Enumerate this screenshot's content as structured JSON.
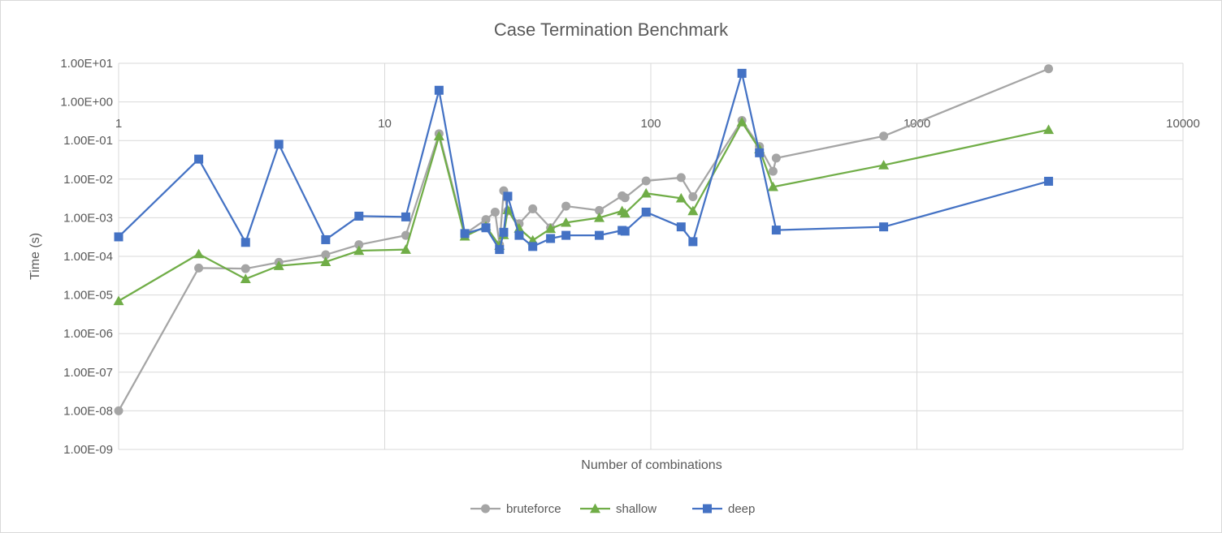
{
  "chart_data": {
    "type": "line",
    "title": "Case Termination Benchmark",
    "xlabel": "Number of combinations",
    "ylabel": "Time (s)",
    "x_scale": "log",
    "y_scale": "log",
    "xlim": [
      1,
      10000
    ],
    "ylim": [
      1e-09,
      10
    ],
    "x_ticks": [
      1,
      10,
      100,
      1000,
      10000
    ],
    "x_tick_labels": [
      "1",
      "10",
      "100",
      "1000",
      "10000"
    ],
    "y_ticks": [
      1e-09,
      1e-08,
      1e-07,
      1e-06,
      1e-05,
      0.0001,
      0.001,
      0.01,
      0.1,
      1,
      10
    ],
    "y_tick_labels": [
      "1.00E-09",
      "1.00E-08",
      "1.00E-07",
      "1.00E-06",
      "1.00E-05",
      "1.00E-04",
      "1.00E-03",
      "1.00E-02",
      "1.00E-01",
      "1.00E+00",
      "1.00E+01"
    ],
    "grid": true,
    "legend_position": "bottom",
    "series": [
      {
        "name": "bruteforce",
        "color": "#a5a5a5",
        "marker": "circle",
        "points": [
          [
            1,
            1e-08
          ],
          [
            2,
            5e-05
          ],
          [
            3,
            4.8e-05
          ],
          [
            4,
            7e-05
          ],
          [
            6,
            0.00011
          ],
          [
            8,
            0.0002
          ],
          [
            12,
            0.00035
          ],
          [
            16,
            0.15
          ],
          [
            20,
            0.00038
          ],
          [
            24,
            0.0009
          ],
          [
            26,
            0.0014
          ],
          [
            27,
            0.0002
          ],
          [
            28,
            0.005
          ],
          [
            29,
            0.0015
          ],
          [
            32,
            0.0007
          ],
          [
            36,
            0.0017
          ],
          [
            42,
            0.00055
          ],
          [
            48,
            0.002
          ],
          [
            64,
            0.00155
          ],
          [
            78,
            0.0037
          ],
          [
            80,
            0.0033
          ],
          [
            96,
            0.009
          ],
          [
            130,
            0.011
          ],
          [
            144,
            0.0035
          ],
          [
            220,
            0.33
          ],
          [
            256,
            0.07
          ],
          [
            288,
            0.016
          ],
          [
            296,
            0.035
          ],
          [
            750,
            0.13
          ],
          [
            3125,
            7.2
          ]
        ]
      },
      {
        "name": "shallow",
        "color": "#70ad47",
        "marker": "triangle",
        "points": [
          [
            1,
            7e-06
          ],
          [
            2,
            0.000115
          ],
          [
            3,
            2.6e-05
          ],
          [
            4,
            5.7e-05
          ],
          [
            6,
            7.2e-05
          ],
          [
            8,
            0.00014
          ],
          [
            12,
            0.00015
          ],
          [
            16,
            0.13
          ],
          [
            20,
            0.00033
          ],
          [
            24,
            0.0006
          ],
          [
            27,
            0.00019
          ],
          [
            28,
            0.00036
          ],
          [
            29,
            0.0016
          ],
          [
            32,
            0.00053
          ],
          [
            36,
            0.00026
          ],
          [
            42,
            0.00052
          ],
          [
            48,
            0.00075
          ],
          [
            64,
            0.001
          ],
          [
            78,
            0.0015
          ],
          [
            80,
            0.0013
          ],
          [
            96,
            0.0043
          ],
          [
            130,
            0.0032
          ],
          [
            144,
            0.0015
          ],
          [
            220,
            0.3
          ],
          [
            256,
            0.06
          ],
          [
            288,
            0.0063
          ],
          [
            750,
            0.023
          ],
          [
            3125,
            0.19
          ]
        ]
      },
      {
        "name": "deep",
        "color": "#4472c4",
        "marker": "square",
        "points": [
          [
            1,
            0.00032
          ],
          [
            2,
            0.033
          ],
          [
            3,
            0.00023
          ],
          [
            4,
            0.08
          ],
          [
            6,
            0.00027
          ],
          [
            8,
            0.0011
          ],
          [
            12,
            0.00105
          ],
          [
            16,
            2.0
          ],
          [
            20,
            0.00039
          ],
          [
            24,
            0.00055
          ],
          [
            27,
            0.00015
          ],
          [
            28,
            0.00042
          ],
          [
            29,
            0.0036
          ],
          [
            32,
            0.00035
          ],
          [
            36,
            0.00018
          ],
          [
            42,
            0.00029
          ],
          [
            48,
            0.00035
          ],
          [
            64,
            0.00035
          ],
          [
            78,
            0.00047
          ],
          [
            80,
            0.00045
          ],
          [
            96,
            0.0014
          ],
          [
            130,
            0.00058
          ],
          [
            144,
            0.00024
          ],
          [
            220,
            5.5
          ],
          [
            256,
            0.048
          ],
          [
            296,
            0.00048
          ],
          [
            750,
            0.00058
          ],
          [
            3125,
            0.0088
          ]
        ]
      }
    ]
  }
}
